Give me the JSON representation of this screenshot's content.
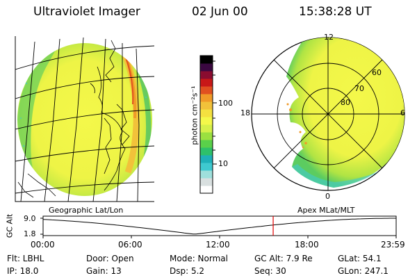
{
  "header": {
    "instrument": "Ultraviolet Imager",
    "date": "02 Jun 00",
    "time": "15:38:28 UT"
  },
  "colorbar": {
    "unit_label": "photon cm⁻²s⁻¹",
    "tick_labels": [
      "100",
      "10"
    ],
    "colors": [
      "#ffffff",
      "#d9e0e0",
      "#9fe0dc",
      "#3fc9cf",
      "#1fb0b8",
      "#2ec06a",
      "#5ad04a",
      "#9be040",
      "#d6f04a",
      "#f4f84a",
      "#f4e040",
      "#f2c23a",
      "#f09a28",
      "#e05020",
      "#c81818",
      "#8a0c30",
      "#3a0840",
      "#000000"
    ]
  },
  "geo_panel": {
    "label": "Geographic Lat/Lon"
  },
  "polar_panel": {
    "label": "Apex MLat/MLT",
    "mlt_labels": {
      "top": "12",
      "bottom": "0",
      "left": "18",
      "right": "6"
    },
    "lat_labels": [
      "60",
      "70",
      "80"
    ]
  },
  "altitude_plot": {
    "ylabel": "GC Alt",
    "y_ticks": [
      "9.0",
      "1.8"
    ],
    "x_ticks": [
      "00:00",
      "06:00",
      "12:00",
      "18:00",
      "23:59"
    ],
    "current_time_marker_hours": 15.64,
    "line_color": "#000000",
    "marker_color": "#e00000"
  },
  "status": {
    "filter": "Flt: LBHL",
    "door": "Door: Open",
    "mode": "Mode: Normal",
    "gc_alt": "GC Alt: 7.9 Re",
    "glat": "GLat:  54.1",
    "ip": "IP: 18.0",
    "gain": "Gain: 13",
    "dsp": "Dsp:     5.2",
    "seq": "Seq: 30",
    "glon": "GLon: 247.1"
  }
}
